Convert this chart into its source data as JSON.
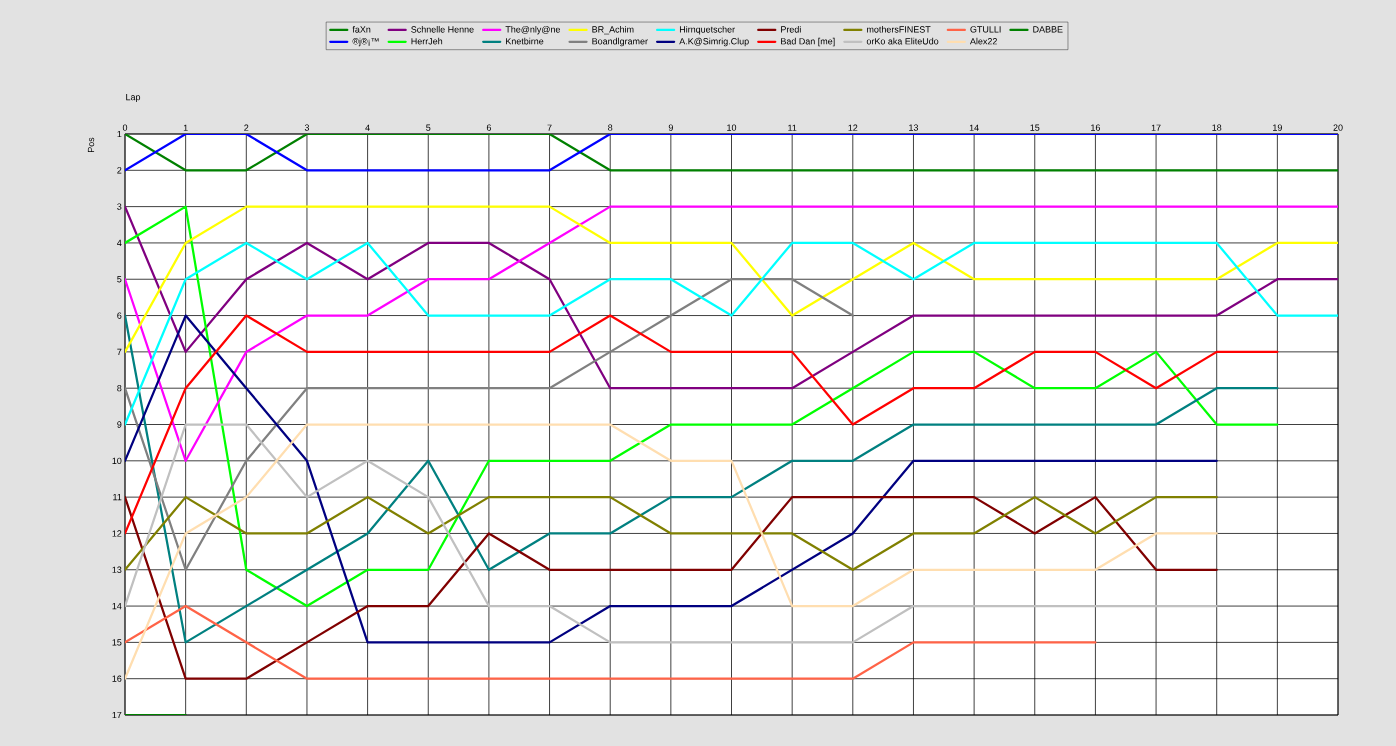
{
  "chart_data": {
    "type": "line",
    "xlabel": "Lap",
    "ylabel": "Pos",
    "xlim": [
      0,
      20
    ],
    "ylim": [
      17,
      1
    ],
    "xticks": [
      0,
      1,
      2,
      3,
      4,
      5,
      6,
      7,
      8,
      9,
      10,
      11,
      12,
      13,
      14,
      15,
      16,
      17,
      18,
      19,
      20
    ],
    "yticks": [
      1,
      2,
      3,
      4,
      5,
      6,
      7,
      8,
      9,
      10,
      11,
      12,
      13,
      14,
      15,
      16,
      17
    ],
    "x": [
      0,
      1,
      2,
      3,
      4,
      5,
      6,
      7,
      8,
      9,
      10,
      11,
      12,
      13,
      14,
      15,
      16,
      17,
      18,
      19,
      20
    ],
    "grid": true,
    "legend": "top",
    "marker": "none",
    "line_style": "solid",
    "series": [
      {
        "name": "faXn",
        "color": "#008000",
        "values": [
          1,
          2,
          2,
          1,
          1,
          1,
          1,
          1,
          2,
          2,
          2,
          2,
          2,
          2,
          2,
          2,
          2,
          2,
          2,
          2,
          2
        ]
      },
      {
        "name": "®j®¡™",
        "color": "#0000ff",
        "values": [
          2,
          1,
          1,
          2,
          2,
          2,
          2,
          2,
          1,
          1,
          1,
          1,
          1,
          1,
          1,
          1,
          1,
          1,
          1,
          1,
          1
        ]
      },
      {
        "name": "Schnelle Henne",
        "color": "#800080",
        "values": [
          3,
          7,
          5,
          4,
          5,
          4,
          4,
          5,
          8,
          8,
          8,
          8,
          7,
          6,
          6,
          6,
          6,
          6,
          6,
          5,
          5
        ]
      },
      {
        "name": "HerrJeh",
        "color": "#00ff00",
        "values": [
          4,
          3,
          13,
          14,
          13,
          13,
          10,
          10,
          10,
          9,
          9,
          9,
          8,
          7,
          7,
          8,
          8,
          7,
          9,
          9,
          null
        ]
      },
      {
        "name": "The@nly@ne",
        "color": "#ff00ff",
        "values": [
          5,
          10,
          7,
          6,
          6,
          5,
          5,
          4,
          3,
          3,
          3,
          3,
          3,
          3,
          3,
          3,
          3,
          3,
          3,
          3,
          3
        ]
      },
      {
        "name": "Knetbirne",
        "color": "#008080",
        "values": [
          6,
          15,
          14,
          13,
          12,
          10,
          13,
          12,
          12,
          11,
          11,
          10,
          10,
          9,
          9,
          9,
          9,
          9,
          8,
          8,
          null
        ]
      },
      {
        "name": "BR_Achim",
        "color": "#ffff00",
        "values": [
          7,
          4,
          3,
          3,
          3,
          3,
          3,
          3,
          4,
          4,
          4,
          6,
          5,
          4,
          5,
          5,
          5,
          5,
          5,
          4,
          4
        ]
      },
      {
        "name": "Boandlgramer",
        "color": "#808080",
        "values": [
          8,
          13,
          10,
          8,
          8,
          8,
          8,
          8,
          7,
          6,
          5,
          5,
          6,
          null,
          null,
          null,
          null,
          null,
          null,
          null,
          null
        ]
      },
      {
        "name": "Hirnquetscher",
        "color": "#00ffff",
        "values": [
          9,
          5,
          4,
          5,
          4,
          6,
          6,
          6,
          5,
          5,
          6,
          4,
          4,
          5,
          4,
          4,
          4,
          4,
          4,
          6,
          6
        ]
      },
      {
        "name": "A.K@Simrig.Clup",
        "color": "#000080",
        "values": [
          10,
          6,
          8,
          10,
          15,
          15,
          15,
          15,
          14,
          14,
          14,
          13,
          12,
          10,
          10,
          10,
          10,
          10,
          10,
          null,
          null
        ]
      },
      {
        "name": "Predi",
        "color": "#800000",
        "values": [
          11,
          16,
          16,
          15,
          14,
          14,
          12,
          13,
          13,
          13,
          13,
          11,
          11,
          11,
          11,
          12,
          11,
          13,
          13,
          null,
          null
        ]
      },
      {
        "name": "Bad Dan [me]",
        "color": "#ff0000",
        "values": [
          12,
          8,
          6,
          7,
          7,
          7,
          7,
          7,
          6,
          7,
          7,
          7,
          9,
          8,
          8,
          7,
          7,
          8,
          7,
          7,
          null
        ]
      },
      {
        "name": "mothersFINEST",
        "color": "#808000",
        "values": [
          13,
          11,
          12,
          12,
          11,
          12,
          11,
          11,
          11,
          12,
          12,
          12,
          13,
          12,
          12,
          11,
          12,
          11,
          11,
          null,
          null
        ]
      },
      {
        "name": "orKo aka EliteUdo",
        "color": "#c0c0c0",
        "values": [
          14,
          9,
          9,
          11,
          10,
          11,
          14,
          14,
          15,
          15,
          15,
          15,
          15,
          14,
          14,
          14,
          14,
          14,
          14,
          null,
          null
        ]
      },
      {
        "name": "GTULLI",
        "color": "#ff6347",
        "values": [
          15,
          14,
          15,
          16,
          16,
          16,
          16,
          16,
          16,
          16,
          16,
          16,
          16,
          15,
          15,
          15,
          15,
          null,
          null,
          null,
          null
        ]
      },
      {
        "name": "Alex22",
        "color": "#ffdeb0",
        "values": [
          16,
          12,
          11,
          9,
          9,
          9,
          9,
          9,
          9,
          10,
          10,
          14,
          14,
          13,
          13,
          13,
          13,
          12,
          12,
          null,
          null
        ]
      },
      {
        "name": "DABBE",
        "color": "#008000",
        "values": [
          17,
          17,
          null,
          null,
          null,
          null,
          null,
          null,
          null,
          null,
          null,
          null,
          null,
          null,
          null,
          null,
          null,
          null,
          null,
          null,
          null
        ]
      }
    ]
  }
}
